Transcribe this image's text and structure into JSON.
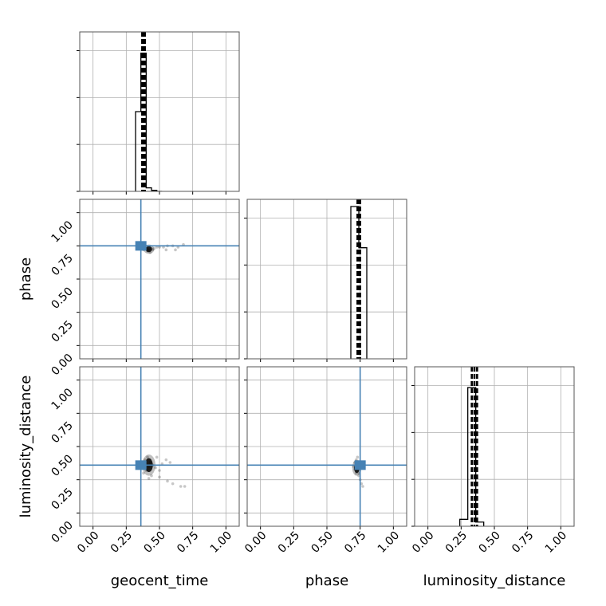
{
  "chart_data": {
    "type": "corner",
    "parameters": [
      "geocent_time",
      "phase",
      "luminosity_distance"
    ],
    "truths": {
      "geocent_time": 0.36,
      "phase": 0.75,
      "luminosity_distance": 0.36
    },
    "tick_labels": [
      "0.00",
      "0.25",
      "0.50",
      "0.75",
      "1.00"
    ],
    "axis_range": [
      -0.1,
      1.1
    ],
    "grid": true,
    "colors": {
      "truth_line": "#4682b4",
      "histogram": "#000000",
      "grid": "#b0b0b0",
      "samples": "#000000"
    },
    "histograms": [
      {
        "parameter": "geocent_time",
        "bin_edges": [
          0.32,
          0.36,
          0.4,
          0.44,
          0.48,
          0.52
        ],
        "counts": [
          0.45,
          0.78,
          0.02,
          0.006,
          0.0
        ],
        "ymax": 0.9,
        "quantiles": [
          0.37,
          0.38,
          0.39
        ]
      },
      {
        "parameter": "phase",
        "bin_edges": [
          0.68,
          0.74,
          0.8
        ],
        "counts": [
          0.85,
          0.62
        ],
        "ymax": 0.89,
        "quantiles": [
          0.73,
          0.74,
          0.75
        ]
      },
      {
        "parameter": "luminosity_distance",
        "bin_edges": [
          0.24,
          0.3,
          0.36,
          0.42
        ],
        "counts": [
          0.05,
          1.0,
          0.03
        ],
        "ymax": 1.15,
        "quantiles": [
          0.33,
          0.35,
          0.37
        ]
      }
    ],
    "scatter_panels": [
      {
        "x_param": "geocent_time",
        "y_param": "phase",
        "points": [
          [
            0.38,
            0.72
          ],
          [
            0.4,
            0.73
          ],
          [
            0.42,
            0.72
          ],
          [
            0.44,
            0.73
          ],
          [
            0.46,
            0.73
          ],
          [
            0.48,
            0.74
          ],
          [
            0.5,
            0.74
          ],
          [
            0.53,
            0.74
          ],
          [
            0.56,
            0.75
          ],
          [
            0.6,
            0.75
          ],
          [
            0.64,
            0.74
          ],
          [
            0.68,
            0.76
          ],
          [
            0.41,
            0.71
          ],
          [
            0.43,
            0.7
          ],
          [
            0.45,
            0.72
          ],
          [
            0.39,
            0.74
          ],
          [
            0.55,
            0.72
          ],
          [
            0.62,
            0.72
          ]
        ]
      },
      {
        "x_param": "geocent_time",
        "y_param": "luminosity_distance",
        "points": [
          [
            0.38,
            0.3
          ],
          [
            0.4,
            0.32
          ],
          [
            0.42,
            0.35
          ],
          [
            0.39,
            0.4
          ],
          [
            0.41,
            0.42
          ],
          [
            0.43,
            0.38
          ],
          [
            0.45,
            0.36
          ],
          [
            0.47,
            0.34
          ],
          [
            0.5,
            0.32
          ],
          [
            0.52,
            0.37
          ],
          [
            0.55,
            0.4
          ],
          [
            0.58,
            0.38
          ],
          [
            0.5,
            0.27
          ],
          [
            0.56,
            0.24
          ],
          [
            0.6,
            0.22
          ],
          [
            0.66,
            0.2
          ],
          [
            0.69,
            0.2
          ],
          [
            0.44,
            0.28
          ],
          [
            0.42,
            0.26
          ],
          [
            0.48,
            0.42
          ]
        ]
      },
      {
        "x_param": "phase",
        "y_param": "luminosity_distance",
        "points": [
          [
            0.7,
            0.35
          ],
          [
            0.71,
            0.38
          ],
          [
            0.72,
            0.4
          ],
          [
            0.73,
            0.32
          ],
          [
            0.74,
            0.3
          ],
          [
            0.75,
            0.34
          ],
          [
            0.76,
            0.38
          ],
          [
            0.74,
            0.28
          ],
          [
            0.75,
            0.25
          ],
          [
            0.76,
            0.22
          ],
          [
            0.77,
            0.2
          ],
          [
            0.73,
            0.42
          ],
          [
            0.72,
            0.3
          ],
          [
            0.71,
            0.33
          ]
        ]
      }
    ],
    "density_cores": [
      {
        "panel": "geocent_time|phase",
        "x": [
          0.38,
          0.46
        ],
        "y": [
          0.69,
          0.76
        ]
      },
      {
        "panel": "geocent_time|luminosity_distance",
        "x": [
          0.37,
          0.47
        ],
        "y": [
          0.28,
          0.44
        ]
      },
      {
        "panel": "phase|luminosity_distance",
        "x": [
          0.69,
          0.76
        ],
        "y": [
          0.28,
          0.4
        ]
      }
    ]
  }
}
